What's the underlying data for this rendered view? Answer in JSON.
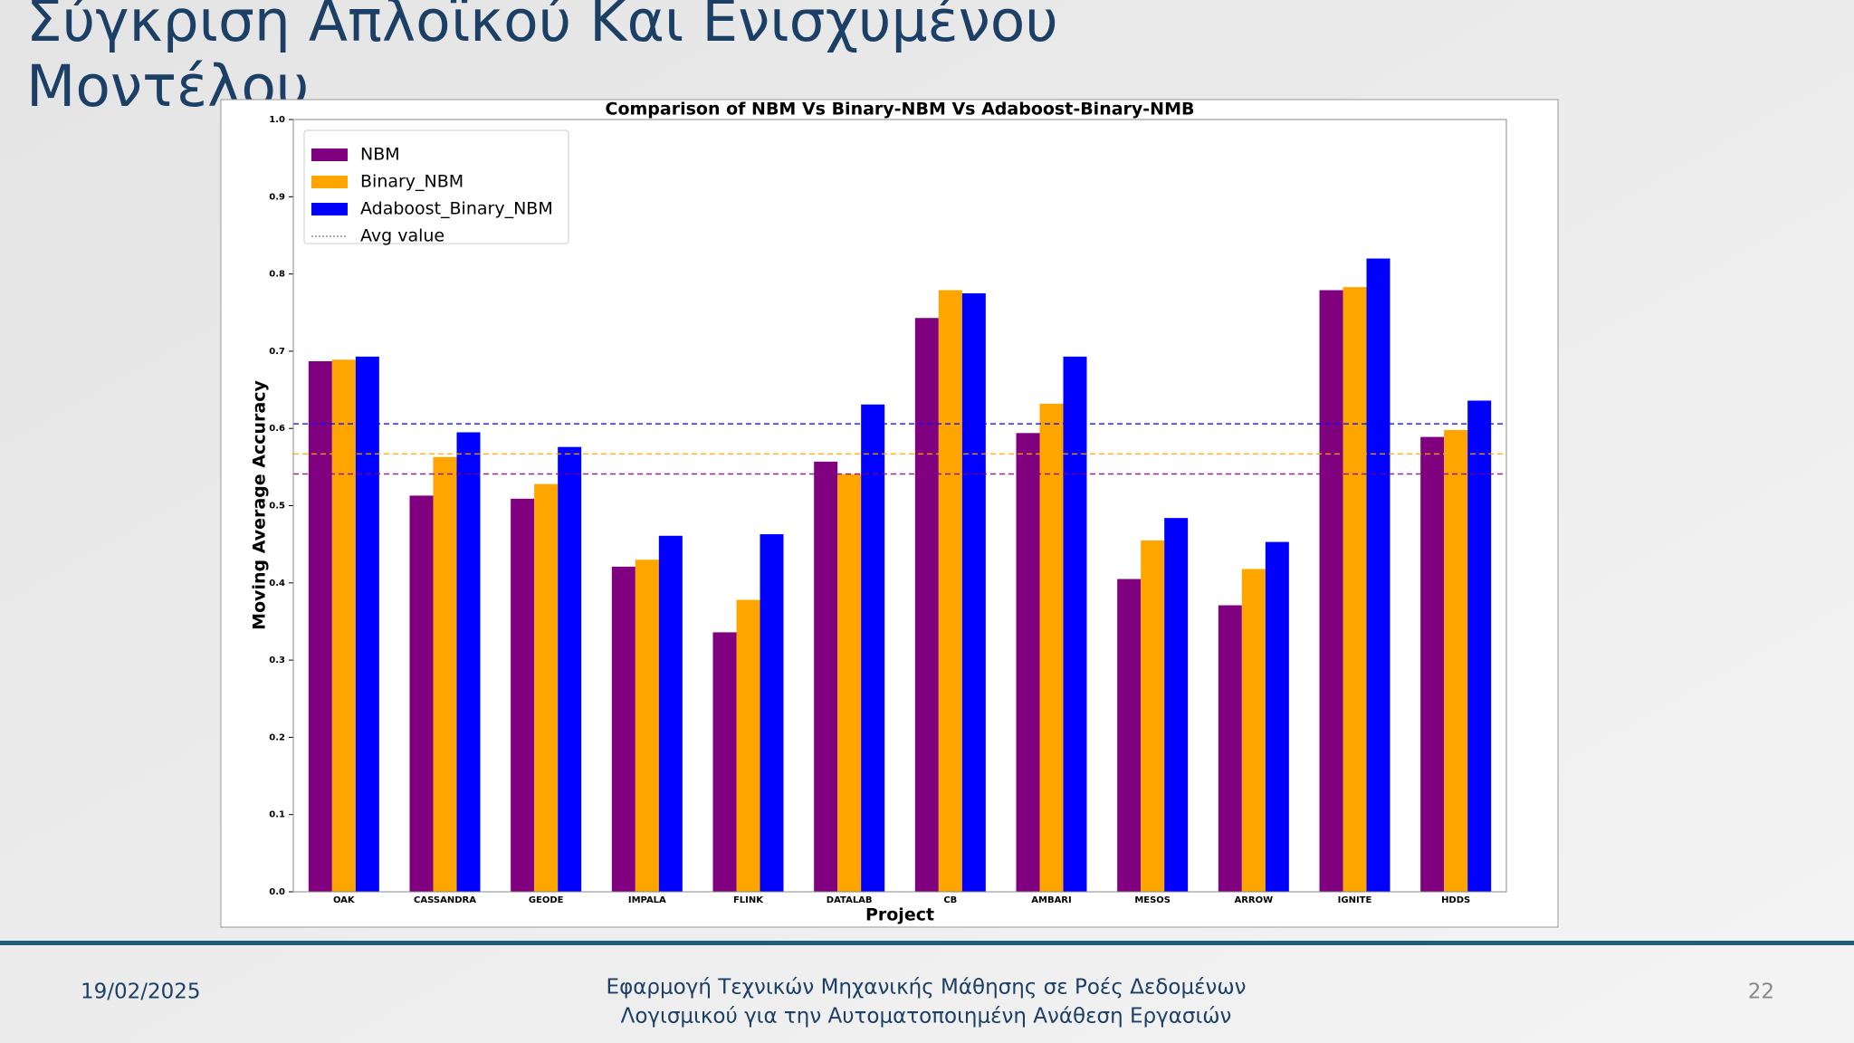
{
  "slide": {
    "title_lines": [
      "Σύγκριση Απλοϊκού  Και Ενισχυμένου",
      "Μοντέλου"
    ],
    "date": "19/02/2025",
    "footer_lines": [
      "Εφαρμογή Τεχνικών Μηχανικής Μάθησης σε Ροές Δεδομένων",
      "Λογισμικού για την Αυτοματοποιημένη Ανάθεση Εργασιών"
    ],
    "page_number": "22"
  },
  "chart_data": {
    "type": "bar",
    "title": "Comparison of NBM Vs Binary-NBM Vs Adaboost-Binary-NMB",
    "x_label": "Project",
    "y_label": "Moving Average Accuracy",
    "categories": [
      "OAK",
      "CASSANDRA",
      "GEODE",
      "IMPALA",
      "FLINK",
      "DATALAB",
      "CB",
      "AMBARI",
      "MESOS",
      "ARROW",
      "IGNITE",
      "HDDS"
    ],
    "series": [
      {
        "name": "NBM",
        "color": "#800080",
        "avg": 0.541,
        "values": [
          0.687,
          0.513,
          0.509,
          0.421,
          0.336,
          0.557,
          0.743,
          0.594,
          0.405,
          0.371,
          0.779,
          0.589
        ]
      },
      {
        "name": "Binary_NBM",
        "color": "#FFA500",
        "avg": 0.567,
        "values": [
          0.689,
          0.563,
          0.528,
          0.43,
          0.378,
          0.541,
          0.779,
          0.632,
          0.455,
          0.418,
          0.783,
          0.598
        ]
      },
      {
        "name": "Adaboost_Binary_NBM",
        "color": "#0000FF",
        "avg": 0.606,
        "values": [
          0.693,
          0.595,
          0.576,
          0.461,
          0.463,
          0.631,
          0.775,
          0.693,
          0.484,
          0.453,
          0.82,
          0.636
        ]
      }
    ],
    "avg_legend": "Avg value",
    "legend": "upper left",
    "ylim": [
      0,
      1
    ],
    "yticks": [
      {
        "value": 0,
        "label": "0.0"
      },
      0.1,
      0.2,
      0.3,
      0.4,
      0.5,
      0.6,
      0.7,
      0.8,
      0.9,
      {
        "value": 1,
        "label": "1.0"
      }
    ]
  }
}
